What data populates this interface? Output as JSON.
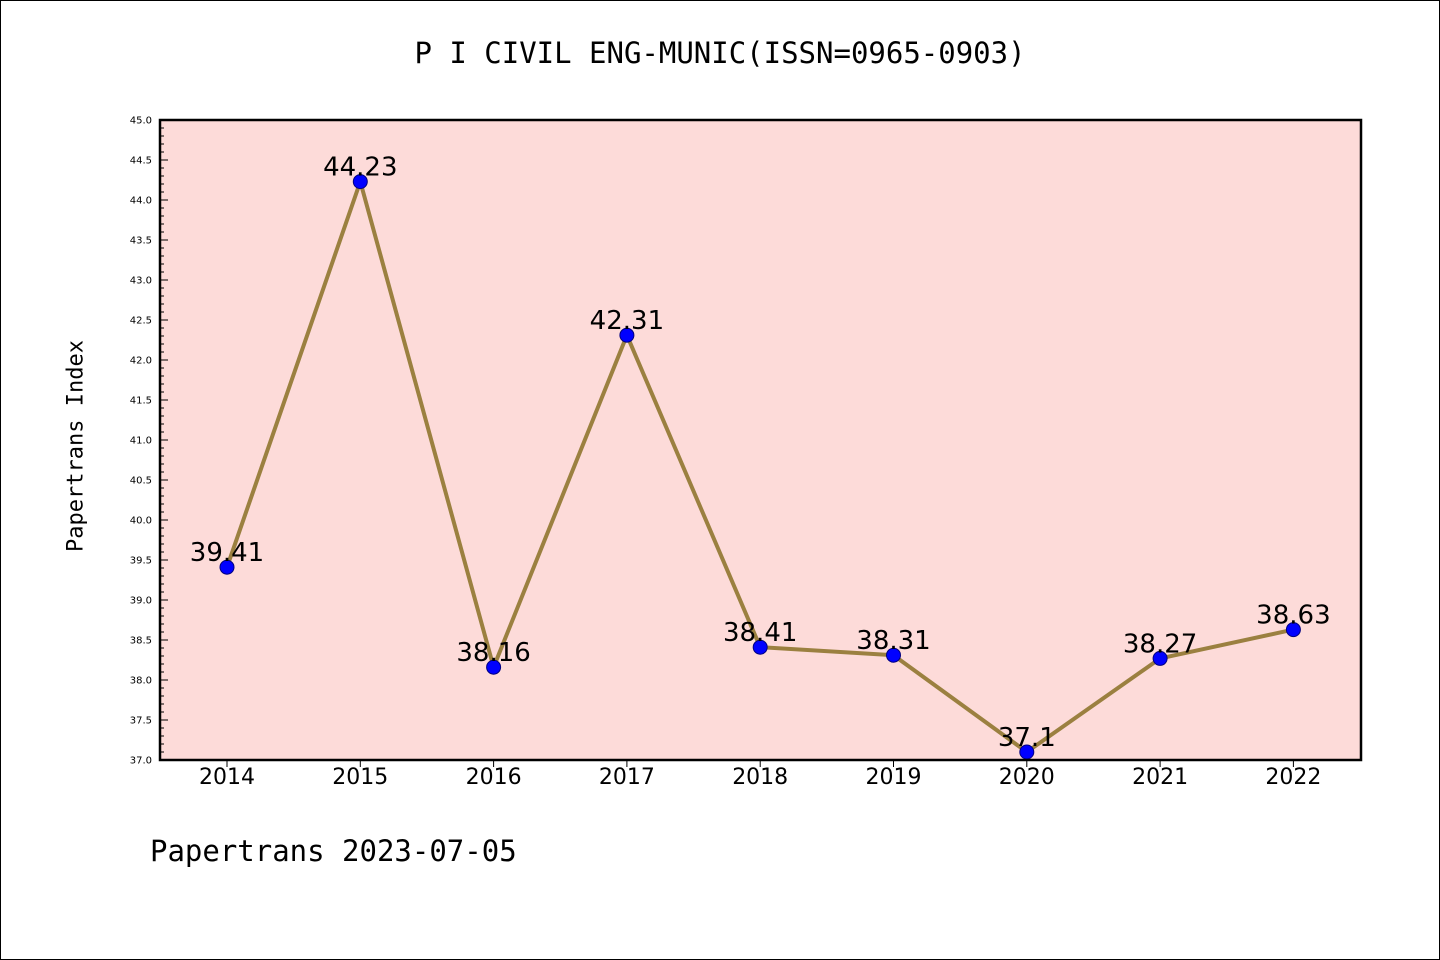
{
  "chart_data": {
    "type": "line",
    "title": "P I CIVIL ENG-MUNIC(ISSN=0965-0903)",
    "xlabel": "",
    "ylabel": "Papertrans Index",
    "categories": [
      "2014",
      "2015",
      "2016",
      "2017",
      "2018",
      "2019",
      "2020",
      "2021",
      "2022"
    ],
    "series": [
      {
        "values": [
          39.41,
          44.23,
          38.16,
          42.31,
          38.41,
          38.31,
          37.1,
          38.27,
          38.63
        ],
        "labels": [
          "39.41",
          "44.23",
          "38.16",
          "42.31",
          "38.41",
          "38.31",
          "37.1",
          "38.27",
          "38.63"
        ]
      }
    ],
    "ylim": [
      37.0,
      45.0
    ],
    "yticks": [
      "37.0",
      "37.5",
      "38.0",
      "38.5",
      "39.0",
      "39.5",
      "40.0",
      "40.5",
      "41.0",
      "41.5",
      "42.0",
      "42.5",
      "43.0",
      "43.5",
      "44.0",
      "44.5",
      "45.0"
    ],
    "grid": false,
    "colors": {
      "plot_background": "#fddbd9",
      "line": "#9b8040",
      "marker_fill": "#0000ff",
      "marker_edge": "#000080"
    }
  },
  "footer": {
    "text": "Papertrans 2023-07-05"
  }
}
